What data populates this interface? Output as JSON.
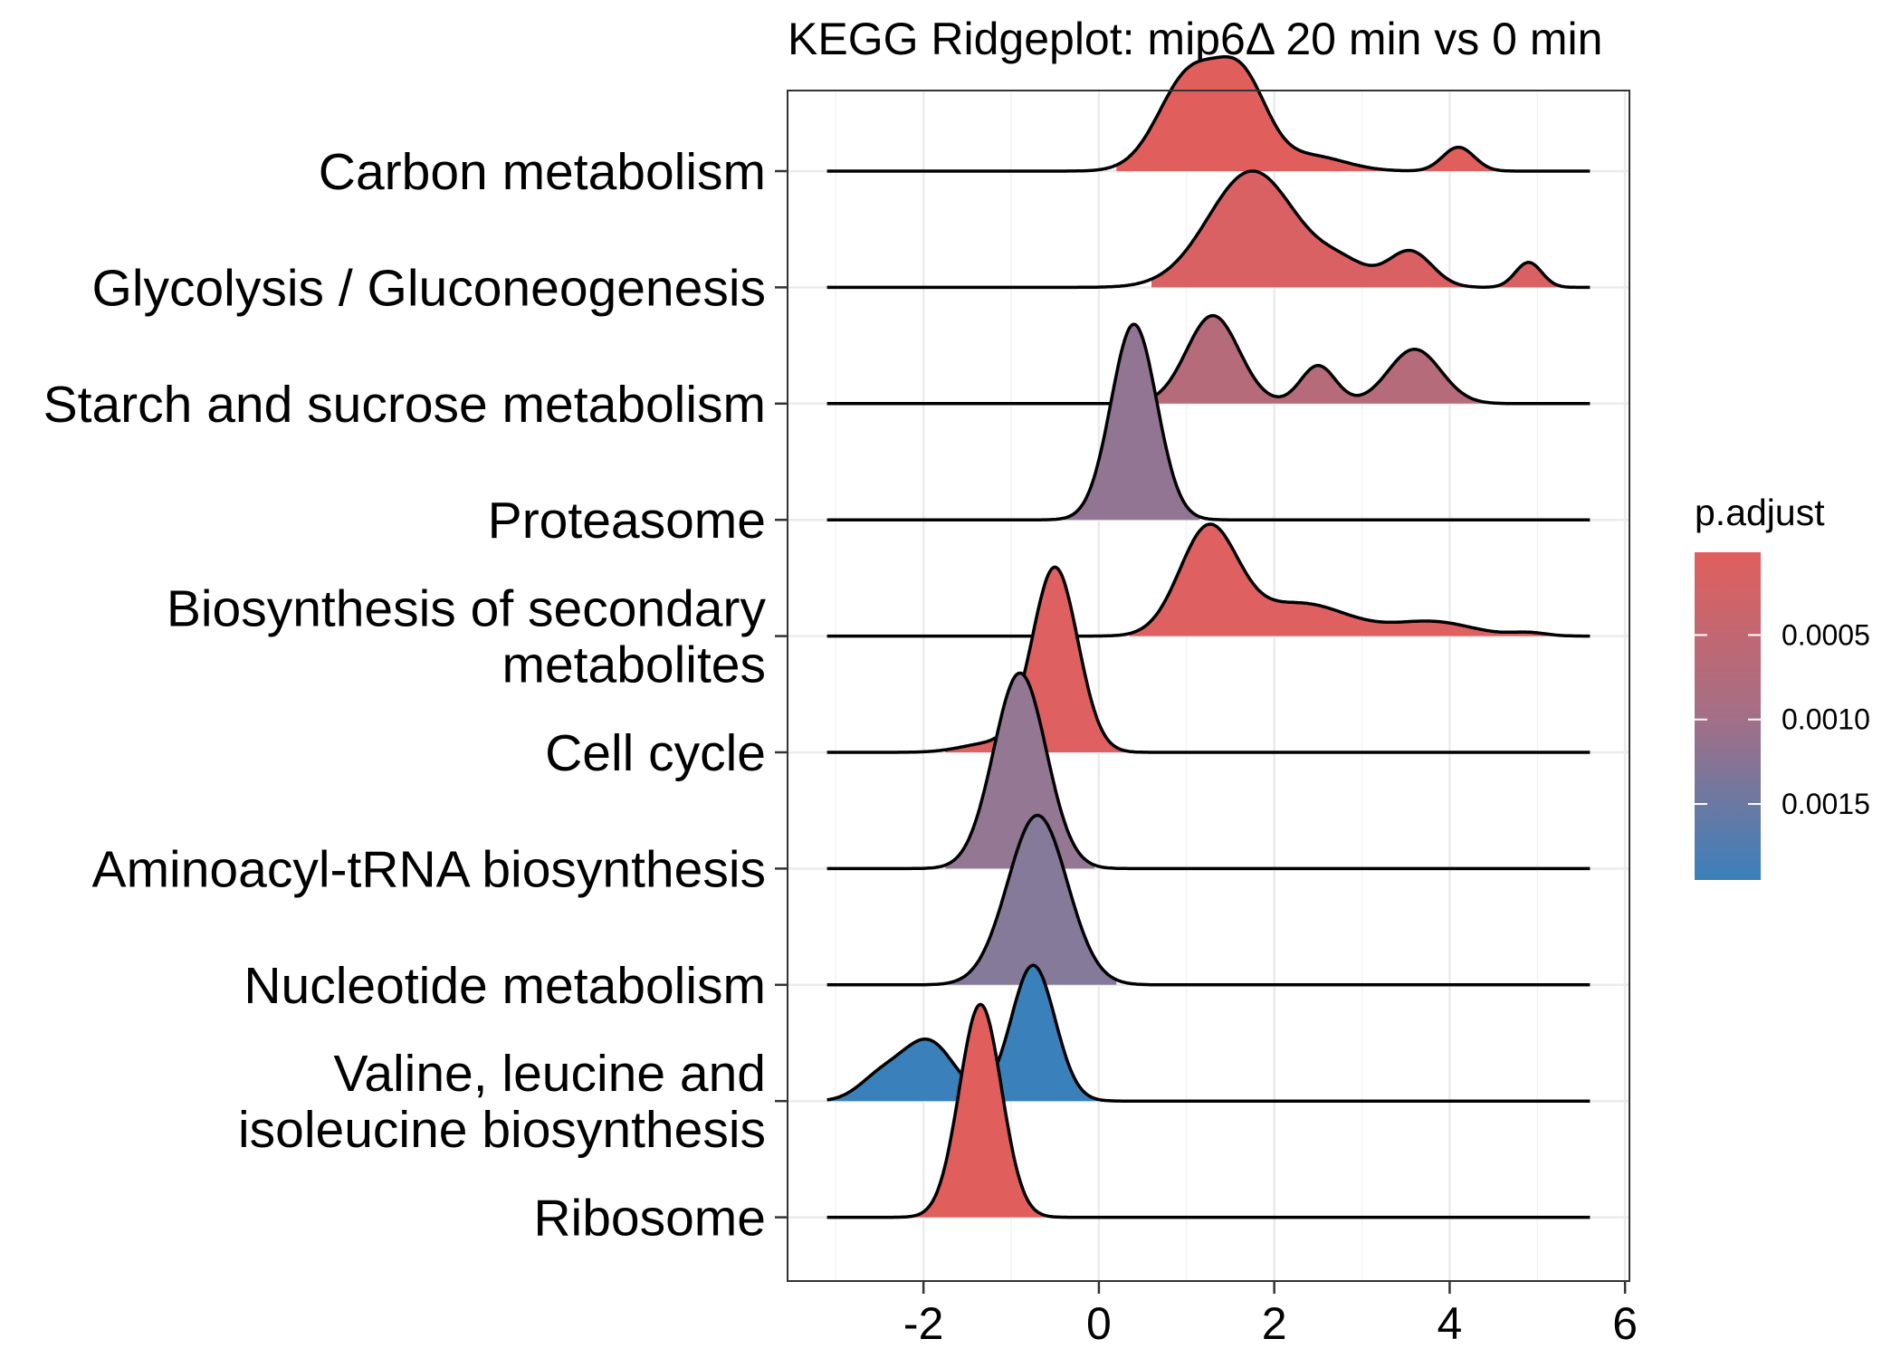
{
  "chart_data": {
    "type": "ridgeline",
    "title": "KEGG Ridgeplot: mip6Δ 20 min vs 0 min",
    "xlabel": "",
    "ylabel": "",
    "xlim": [
      -3.55,
      6.05
    ],
    "xticks": [
      -2,
      0,
      2,
      4,
      6
    ],
    "grid": true,
    "legend": {
      "title": "p.adjust",
      "placement": "right",
      "range": [
        1e-05,
        0.00195
      ],
      "ticks": [
        0.0005,
        0.001,
        0.0015
      ],
      "tick_labels": [
        "0.0005",
        "0.0010",
        "0.0015"
      ],
      "low_color": "#e05f5d",
      "high_color": "#3a80bb"
    },
    "series": [
      {
        "name": "Carbon metabolism",
        "p_adjust": 2e-05,
        "color": "#e05f5d",
        "peaks": [
          [
            1.05,
            0.36,
            0.9
          ],
          [
            1.65,
            0.28,
            0.72
          ],
          [
            2.4,
            0.4,
            0.14
          ],
          [
            4.1,
            0.18,
            0.22
          ]
        ],
        "curve_range": [
          -3.1,
          5.6
        ],
        "fill_range": [
          0.2,
          4.7
        ]
      },
      {
        "name": "Glycolysis / Gluconeogenesis",
        "p_adjust": 0.00015,
        "color": "#da6163",
        "peaks": [
          [
            1.75,
            0.5,
            1.07
          ],
          [
            2.8,
            0.3,
            0.18
          ],
          [
            3.55,
            0.25,
            0.33
          ],
          [
            4.9,
            0.15,
            0.23
          ]
        ],
        "curve_range": [
          -3.1,
          5.6
        ],
        "fill_range": [
          0.6,
          5.6
        ]
      },
      {
        "name": "Starch and sucrose metabolism",
        "p_adjust": 0.00095,
        "color": "#b56b7a",
        "peaks": [
          [
            1.3,
            0.3,
            0.81
          ],
          [
            2.5,
            0.2,
            0.35
          ],
          [
            3.6,
            0.3,
            0.5
          ]
        ],
        "curve_range": [
          -3.1,
          5.6
        ],
        "fill_range": [
          0.65,
          4.4
        ]
      },
      {
        "name": "Proteasome",
        "p_adjust": 0.0012,
        "color": "#917593",
        "peaks": [
          [
            0.4,
            0.26,
            1.8
          ]
        ],
        "curve_range": [
          -3.1,
          5.6
        ],
        "fill_range": [
          -0.4,
          1.15
        ]
      },
      {
        "name": "Biosynthesis of secondary metabolites",
        "p_adjust": 5e-05,
        "color": "#de6061",
        "peaks": [
          [
            1.25,
            0.33,
            0.98
          ],
          [
            2.3,
            0.55,
            0.3
          ],
          [
            3.8,
            0.45,
            0.13
          ],
          [
            4.9,
            0.2,
            0.03
          ]
        ],
        "curve_range": [
          -3.1,
          5.6
        ],
        "fill_range": [
          0.35,
          5.6
        ]
      },
      {
        "name": "Cell cycle",
        "p_adjust": 5e-05,
        "color": "#de6061",
        "peaks": [
          [
            -0.5,
            0.26,
            1.7
          ],
          [
            -1.25,
            0.32,
            0.08
          ]
        ],
        "curve_range": [
          -3.1,
          5.6
        ],
        "fill_range": [
          -1.75,
          0.3
        ]
      },
      {
        "name": "Aminoacyl-tRNA biosynthesis",
        "p_adjust": 0.00115,
        "color": "#947793",
        "peaks": [
          [
            -0.9,
            0.3,
            1.8
          ]
        ],
        "curve_range": [
          -3.1,
          5.6
        ],
        "fill_range": [
          -1.75,
          -0.05
        ]
      },
      {
        "name": "Nucleotide metabolism",
        "p_adjust": 0.0014,
        "color": "#857a9a",
        "peaks": [
          [
            -0.7,
            0.34,
            1.56
          ]
        ],
        "curve_range": [
          -3.1,
          5.6
        ],
        "fill_range": [
          -1.8,
          0.2
        ]
      },
      {
        "name": "Valine, leucine and isoleucine biosynthesis",
        "p_adjust": 0.00195,
        "color": "#3a80bb",
        "peaks": [
          [
            -0.75,
            0.25,
            1.25
          ],
          [
            -1.95,
            0.3,
            0.55
          ],
          [
            -2.5,
            0.25,
            0.2
          ]
        ],
        "curve_range": [
          -3.1,
          5.6
        ],
        "fill_range": [
          -3.1,
          0.0
        ]
      },
      {
        "name": "Ribosome",
        "p_adjust": 2e-05,
        "color": "#e05f5d",
        "peaks": [
          [
            -1.35,
            0.24,
            1.96
          ]
        ],
        "curve_range": [
          -3.1,
          5.6
        ],
        "fill_range": [
          -2.2,
          -0.4
        ]
      }
    ]
  }
}
